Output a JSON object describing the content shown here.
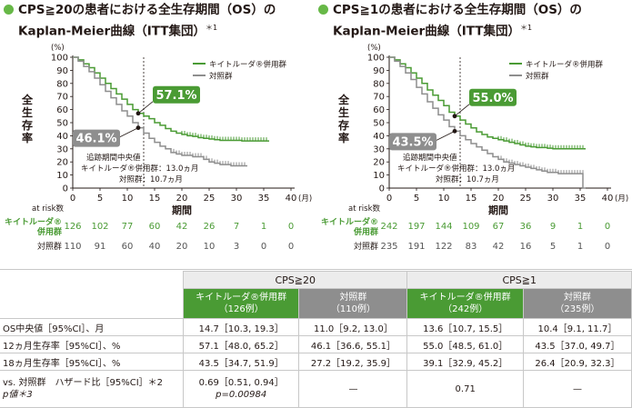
{
  "colors": {
    "keytruda": "#4a9b34",
    "control": "#8e8e8e",
    "accent": "#67b847"
  },
  "chart_data": [
    {
      "type": "line",
      "title_l1": "CPS≧20の患者における全生存期間（OS）の",
      "title_l2": "Kaplan-Meier曲線（ITT集団）",
      "title_note": "＊1",
      "ylabel_unit": "(%)",
      "ylabel": "全生存率",
      "xlabel": "期間",
      "x_unit": "(月)",
      "xlim": [
        0,
        40
      ],
      "ylim": [
        0,
        100
      ],
      "xticks": [
        0,
        5,
        10,
        15,
        20,
        25,
        30,
        35,
        40
      ],
      "yticks": [
        0,
        10,
        20,
        30,
        40,
        50,
        60,
        70,
        80,
        90,
        100
      ],
      "median_followup_x": 13,
      "series": [
        {
          "name": "キイトルーダ®併用群",
          "x": [
            0,
            1,
            2,
            3,
            4,
            5,
            6,
            7,
            8,
            9,
            10,
            11,
            12,
            13,
            14,
            15,
            16,
            17,
            18,
            19,
            20,
            21,
            22,
            23,
            24,
            25,
            26,
            27,
            28,
            29,
            30,
            31,
            32,
            33,
            34,
            35,
            36
          ],
          "y": [
            100,
            98,
            95,
            92,
            88,
            84,
            80,
            76,
            72,
            68,
            64,
            60,
            57.1,
            55,
            53,
            50,
            48,
            45.5,
            43.5,
            42,
            41,
            40,
            39.5,
            38.5,
            38,
            37.5,
            37,
            36.5,
            36.5,
            36.5,
            36.5,
            36,
            36,
            36,
            36,
            36,
            36
          ]
        },
        {
          "name": "対照群",
          "x": [
            0,
            1,
            2,
            3,
            4,
            5,
            6,
            7,
            8,
            9,
            10,
            11,
            12,
            13,
            14,
            15,
            16,
            17,
            18,
            19,
            20,
            21,
            22,
            23,
            24,
            25,
            26,
            27,
            28,
            29,
            30,
            31,
            32
          ],
          "y": [
            100,
            97,
            93,
            89,
            84,
            79,
            74,
            69,
            64,
            59,
            55,
            50,
            46.1,
            42,
            38,
            35,
            32,
            30,
            27.2,
            26,
            25,
            25,
            24,
            24,
            22,
            20,
            19,
            18,
            18,
            17,
            17,
            17,
            17
          ]
        }
      ],
      "annotations": {
        "keytruda_12m": "57.1%",
        "control_12m": "46.1%",
        "followup_title": "追跡期間中央値",
        "followup_k": "キイトルーダ®併用群：13.0ヵ月",
        "followup_c": "対照群：10.7ヵ月"
      },
      "at_risk_label": "at risk数",
      "at_risk_k_label": [
        "キイトルーダ®",
        "併用群"
      ],
      "at_risk_c_label": "対照群",
      "at_risk_k": [
        "126",
        "102",
        "77",
        "60",
        "42",
        "26",
        "7",
        "1",
        "0"
      ],
      "at_risk_c": [
        "110",
        "91",
        "60",
        "40",
        "20",
        "10",
        "3",
        "0",
        "0"
      ]
    },
    {
      "type": "line",
      "title_l1": "CPS≧1の患者における全生存期間（OS）の",
      "title_l2": "Kaplan-Meier曲線（ITT集団）",
      "title_note": "＊1",
      "ylabel_unit": "(%)",
      "ylabel": "全生存率",
      "xlabel": "期間",
      "x_unit": "(月)",
      "xlim": [
        0,
        40
      ],
      "ylim": [
        0,
        100
      ],
      "xticks": [
        0,
        5,
        10,
        15,
        20,
        25,
        30,
        35,
        40
      ],
      "yticks": [
        0,
        10,
        20,
        30,
        40,
        50,
        60,
        70,
        80,
        90,
        100
      ],
      "median_followup_x": 13,
      "series": [
        {
          "name": "キイトルーダ®併用群",
          "x": [
            0,
            1,
            2,
            3,
            4,
            5,
            6,
            7,
            8,
            9,
            10,
            11,
            12,
            13,
            14,
            15,
            16,
            17,
            18,
            19,
            20,
            21,
            22,
            23,
            24,
            25,
            26,
            27,
            28,
            29,
            30,
            31,
            32,
            33,
            34,
            35,
            36
          ],
          "y": [
            100,
            98,
            95,
            92,
            88,
            84,
            80,
            75,
            71,
            67,
            63,
            58,
            55,
            52,
            49,
            46,
            43,
            41,
            39.1,
            38,
            37,
            36,
            35,
            34,
            33,
            32,
            31.5,
            31,
            31,
            30.5,
            30,
            30,
            30,
            30,
            30,
            30,
            30
          ]
        },
        {
          "name": "対照群",
          "x": [
            0,
            1,
            2,
            3,
            4,
            5,
            6,
            7,
            8,
            9,
            10,
            11,
            12,
            13,
            14,
            15,
            16,
            17,
            18,
            19,
            20,
            21,
            22,
            23,
            24,
            25,
            26,
            27,
            28,
            29,
            30,
            31,
            32,
            33,
            34,
            35,
            35.5,
            36
          ],
          "y": [
            100,
            97,
            93,
            88,
            83,
            77,
            72,
            66,
            61,
            56,
            52,
            47,
            43.5,
            40,
            37,
            34,
            31.5,
            29,
            26.4,
            24,
            22,
            20,
            19,
            18,
            17,
            16,
            15,
            14,
            13,
            12,
            12,
            11,
            11,
            11,
            11,
            11,
            0,
            0
          ]
        }
      ],
      "annotations": {
        "keytruda_12m": "55.0%",
        "control_12m": "43.5%",
        "followup_title": "追跡期間中央値",
        "followup_k": "キイトルーダ®併用群：13.0ヵ月",
        "followup_c": "対照群：10.7ヵ月"
      },
      "at_risk_label": "at risk数",
      "at_risk_k_label": [
        "キイトルーダ®",
        "併用群"
      ],
      "at_risk_c_label": "対照群",
      "at_risk_k": [
        "242",
        "197",
        "144",
        "109",
        "67",
        "36",
        "9",
        "1",
        "0"
      ],
      "at_risk_c": [
        "235",
        "191",
        "122",
        "83",
        "42",
        "16",
        "5",
        "1",
        "0"
      ]
    }
  ],
  "table": {
    "group_cps20": "CPS≧20",
    "group_cps1": "CPS≧1",
    "cols": [
      {
        "name": "キイトルーダ®併用群",
        "n": "（126例）"
      },
      {
        "name": "対照群",
        "n": "（110例）"
      },
      {
        "name": "キイトルーダ®併用群",
        "n": "（242例）"
      },
      {
        "name": "対照群",
        "n": "（235例）"
      }
    ],
    "rows": [
      {
        "label": "OS中央値［95%CI］、月",
        "values": [
          "14.7［10.3, 19.3］",
          "11.0［9.2, 13.0］",
          "13.6［10.7, 15.5］",
          "10.4［9.1, 11.7］"
        ]
      },
      {
        "label": "12ヵ月生存率［95%CI］、%",
        "values": [
          "57.1［48.0, 65.2］",
          "46.1［36.6, 55.1］",
          "55.0［48.5, 61.0］",
          "43.5［37.0, 49.7］"
        ]
      },
      {
        "label": "18ヵ月生存率［95%CI］、%",
        "values": [
          "43.5［34.7, 51.9］",
          "27.2［19.2, 35.9］",
          "39.1［32.9, 45.2］",
          "26.4［20.9, 32.3］"
        ]
      }
    ],
    "last_row": {
      "label_l1": "vs. 対照群　ハザード比［95%CI］＊2",
      "label_l2": "p値＊3",
      "v1_l1": "0.69［0.51, 0.94］",
      "v1_l2": "p=0.00984",
      "v2": "—",
      "v3": "0.71",
      "v4": "—"
    }
  }
}
